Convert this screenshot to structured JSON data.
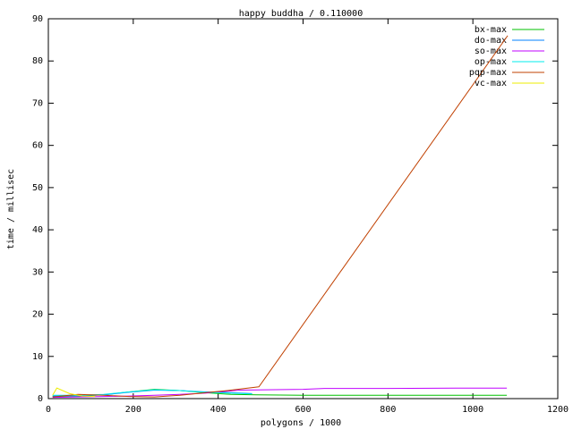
{
  "chart_data": {
    "type": "line",
    "title": "happy buddha / 0.110000",
    "xlabel": "polygons / 1000",
    "ylabel": "time / millisec",
    "xlim": [
      0,
      1200
    ],
    "xticks": [
      0,
      200,
      400,
      600,
      800,
      1000,
      1200
    ],
    "ylim": [
      0,
      90
    ],
    "yticks": [
      0,
      10,
      20,
      30,
      40,
      50,
      60,
      70,
      80,
      90
    ],
    "grid": false,
    "legend": "top-right",
    "series": [
      {
        "name": "bx-max",
        "color": "#00c000",
        "x": [
          10,
          70,
          130,
          190,
          250,
          310,
          370,
          430,
          490,
          600,
          800,
          1080
        ],
        "values": [
          0.5,
          0.6,
          0.9,
          1.6,
          2.2,
          1.9,
          1.4,
          1.0,
          0.9,
          0.8,
          0.8,
          0.8
        ]
      },
      {
        "name": "do-max",
        "color": "#0080ff",
        "x": [
          10,
          70,
          130,
          190,
          250,
          310,
          370,
          430,
          480
        ],
        "values": [
          0.6,
          0.7,
          0.9,
          1.5,
          2.0,
          1.9,
          1.6,
          1.4,
          1.2
        ]
      },
      {
        "name": "so-max",
        "color": "#c000ff",
        "x": [
          10,
          70,
          130,
          190,
          250,
          310,
          370,
          450,
          600,
          650,
          800,
          1000,
          1080
        ],
        "values": [
          0.3,
          0.4,
          0.5,
          0.6,
          0.8,
          1.0,
          1.3,
          2.0,
          2.2,
          2.4,
          2.4,
          2.5,
          2.5
        ]
      },
      {
        "name": "op-max",
        "color": "#00eeee",
        "x": [
          10,
          70,
          130,
          190,
          250,
          310,
          370,
          430,
          480
        ],
        "values": [
          0.8,
          0.8,
          1.0,
          1.6,
          2.1,
          1.9,
          1.5,
          1.3,
          1.1
        ]
      },
      {
        "name": "pqp-max",
        "color": "#c04000",
        "x": [
          10,
          70,
          130,
          190,
          250,
          310,
          370,
          430,
          496,
          1082
        ],
        "values": [
          0.4,
          1.0,
          0.8,
          0.5,
          0.4,
          0.8,
          1.4,
          2.0,
          2.8,
          86
        ]
      },
      {
        "name": "vc-max",
        "color": "#eeee00",
        "x": [
          10,
          20,
          50,
          80,
          110
        ],
        "values": [
          0.8,
          2.5,
          1.2,
          0.6,
          0.5
        ]
      }
    ]
  }
}
